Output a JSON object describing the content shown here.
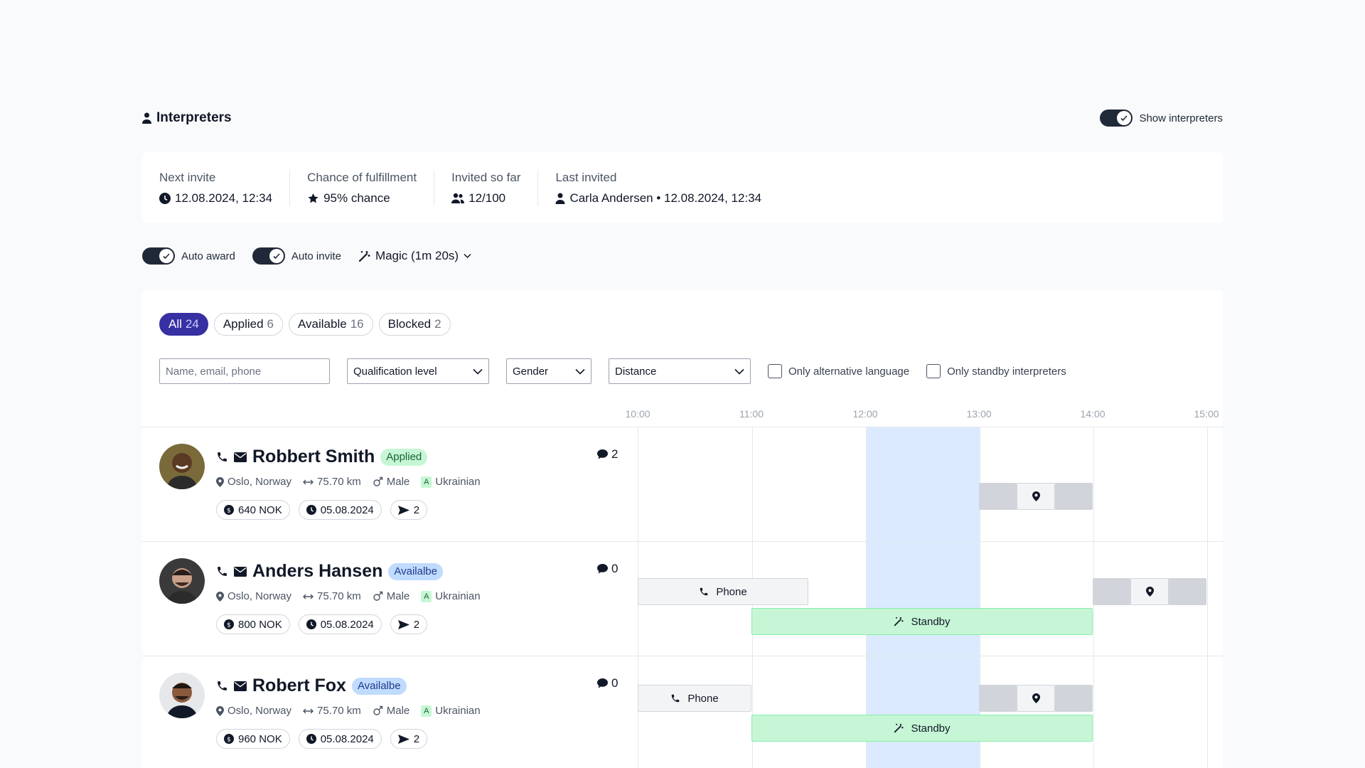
{
  "section": {
    "title": "Interpreters",
    "show_toggle_label": "Show interpreters"
  },
  "stats": {
    "next_invite": {
      "label": "Next invite",
      "value": "12.08.2024, 12:34"
    },
    "chance": {
      "label": "Chance of fulfillment",
      "value": "95% chance"
    },
    "invited": {
      "label": "Invited so far",
      "value": "12/100"
    },
    "last_invited": {
      "label": "Last invited",
      "value": "Carla Andersen • 12.08.2024, 12:34"
    }
  },
  "controls": {
    "auto_award": "Auto award",
    "auto_invite": "Auto invite",
    "magic": "Magic (1m 20s)"
  },
  "tabs": [
    {
      "label": "All",
      "count": "24",
      "active": true
    },
    {
      "label": "Applied",
      "count": "6"
    },
    {
      "label": "Available",
      "count": "16"
    },
    {
      "label": "Blocked",
      "count": "2"
    }
  ],
  "filters": {
    "search_placeholder": "Name, email, phone",
    "qualification": "Qualification level",
    "gender": "Gender",
    "distance": "Distance",
    "alt_language": "Only alternative language",
    "standby_only": "Only standby interpreters"
  },
  "timeline": {
    "hours": [
      "10:00",
      "11:00",
      "12:00",
      "13:00",
      "14:00",
      "15:00"
    ],
    "highlight": [
      "12:00",
      "13:00"
    ]
  },
  "interpreters": [
    {
      "name": "Robbert Smith",
      "status": "Applied",
      "messages": "2",
      "location": "Oslo, Norway",
      "distance": "75.70 km",
      "gender": "Male",
      "language": "Ukrainian",
      "lang_letter": "A",
      "price": "640 NOK",
      "date": "05.08.2024",
      "invites": "2"
    },
    {
      "name": "Anders Hansen",
      "status": "Availalbe",
      "messages": "0",
      "location": "Oslo, Norway",
      "distance": "75.70 km",
      "gender": "Male",
      "language": "Ukrainian",
      "lang_letter": "A",
      "price": "800 NOK",
      "date": "05.08.2024",
      "invites": "2",
      "phone_label": "Phone",
      "standby_label": "Standby"
    },
    {
      "name": "Robert Fox",
      "status": "Availalbe",
      "messages": "0",
      "location": "Oslo, Norway",
      "distance": "75.70 km",
      "gender": "Male",
      "language": "Ukrainian",
      "lang_letter": "A",
      "price": "960 NOK",
      "date": "05.08.2024",
      "invites": "2",
      "phone_label": "Phone",
      "standby_label": "Standby"
    }
  ]
}
